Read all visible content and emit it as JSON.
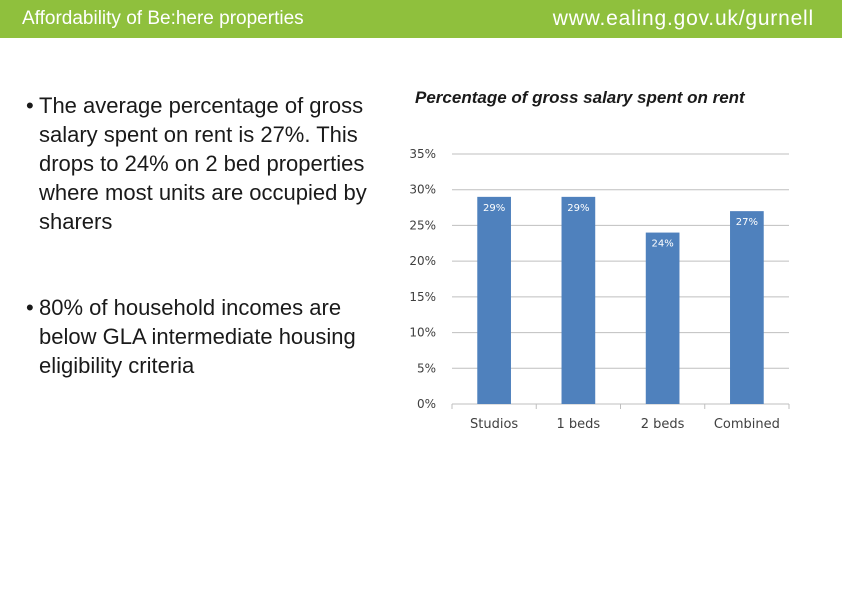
{
  "header": {
    "title": "Affordability of Be:here properties",
    "url": "www.ealing.gov.uk/gurnell"
  },
  "bullets": [
    {
      "marker": "•",
      "text": "The average percentage of gross salary spent on rent is 27%. This drops to 24% on 2 bed properties where most units are occupied by sharers"
    },
    {
      "marker": "•",
      "text": "80% of household incomes are below GLA intermediate housing eligibility criteria"
    }
  ],
  "colors": {
    "header": "#8fc03d",
    "bar": "#4f81bd",
    "grid": "#bfbfbf"
  },
  "chart_data": {
    "type": "bar",
    "title": "Percentage of gross salary spent on rent",
    "categories": [
      "Studios",
      "1 beds",
      "2 beds",
      "Combined"
    ],
    "values": [
      29,
      29,
      24,
      27
    ],
    "data_labels": [
      "29%",
      "29%",
      "24%",
      "27%"
    ],
    "ylim": [
      0,
      35
    ],
    "ytick_values": [
      0,
      5,
      10,
      15,
      20,
      25,
      30,
      35
    ],
    "ytick_labels": [
      "0%",
      "5%",
      "10%",
      "15%",
      "20%",
      "25%",
      "30%",
      "35%"
    ],
    "grid": true,
    "legend": "none"
  }
}
